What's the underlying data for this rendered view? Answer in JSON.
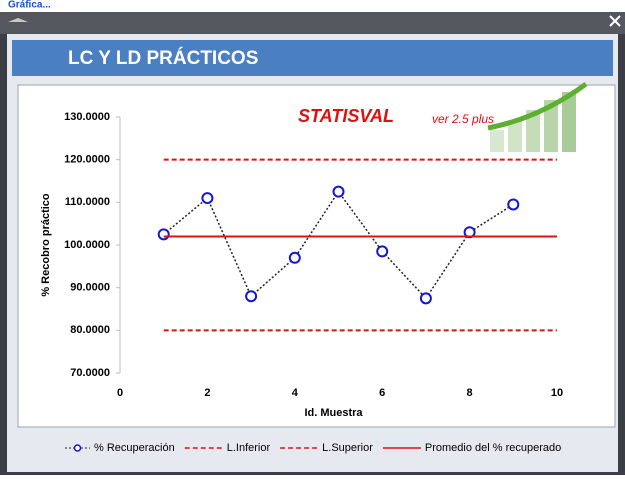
{
  "caption": "Gráfica...",
  "window": {
    "title": "LC Y LD PRÁCTICOS"
  },
  "logo": {
    "name": "STATISVAL",
    "version": "ver 2.5 plus"
  },
  "chart_data": {
    "type": "line",
    "x_label": "Id. Muestra",
    "y_label": "% Recobro práctico",
    "xlim": [
      0,
      10
    ],
    "xticks": [
      0,
      2,
      4,
      6,
      8,
      10
    ],
    "ylim": [
      70,
      130
    ],
    "yticks": [
      {
        "value": 70,
        "label": "70.0000"
      },
      {
        "value": 80,
        "label": "80.0000"
      },
      {
        "value": 90,
        "label": "90.0000"
      },
      {
        "value": 100,
        "label": "100.0000"
      },
      {
        "value": 110,
        "label": "110.0000"
      },
      {
        "value": 120,
        "label": "120.0000"
      },
      {
        "value": 130,
        "label": "130.0000"
      }
    ],
    "series": [
      {
        "name": "% Recuperación",
        "color": "#1515d8",
        "dash": "dotted",
        "marker": "circle",
        "x": [
          1,
          2,
          3,
          4,
          5,
          6,
          7,
          8,
          9
        ],
        "values": [
          102.5,
          111,
          88,
          97,
          112.5,
          98.5,
          87.5,
          103,
          109.5
        ]
      },
      {
        "name": "L.Inferior",
        "color": "#e01010",
        "dash": "dashed",
        "marker": "none",
        "x": [
          1,
          10
        ],
        "values": [
          80,
          80
        ]
      },
      {
        "name": "L.Superior",
        "color": "#e01010",
        "dash": "dashed",
        "marker": "none",
        "x": [
          1,
          10
        ],
        "values": [
          120,
          120
        ]
      },
      {
        "name": "Promedio del % recuperado",
        "color": "#e01010",
        "dash": "solid",
        "marker": "none",
        "x": [
          1,
          10
        ],
        "values": [
          102,
          102
        ]
      }
    ]
  }
}
